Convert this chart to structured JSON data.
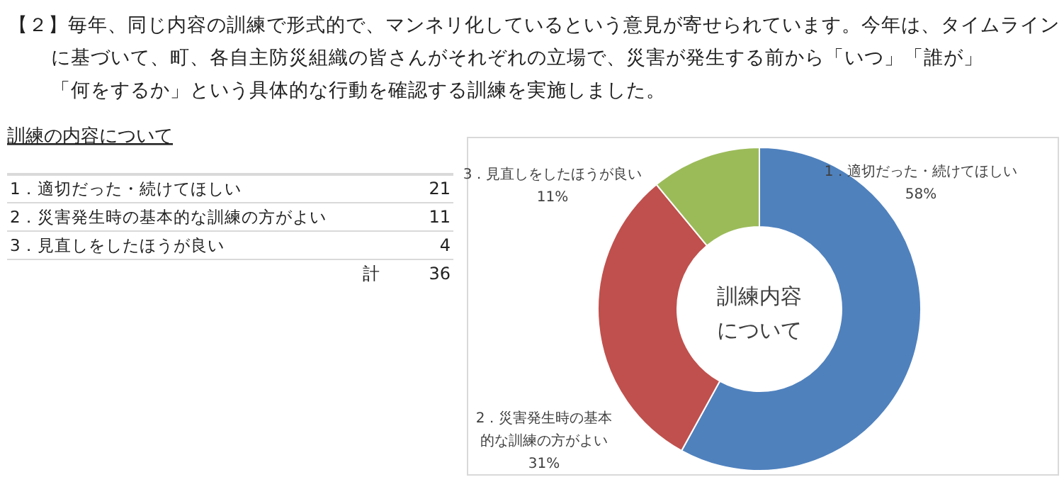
{
  "chart_data": {
    "type": "donut",
    "title": "【２】毎年、同じ内容の訓練で形式的で、マンネリ化しているという意見が寄せられています。今年は、タイムラインに基づいて、町、各自主防災組織の皆さんがそれぞれの立場で、災害が発生する前から「いつ」「誰が」「何をするか」という具体的な行動を確認する訓練を実施しました。",
    "subtitle": "訓練の内容について",
    "categories": [
      "1．適切だった・続けてほしい",
      "2．災害発生時の基本的な訓練の方がよい",
      "3．見直しをしたほうが良い"
    ],
    "values": [
      58,
      31,
      11
    ],
    "value_labels": [
      "58%",
      "31%",
      "11%"
    ],
    "colors": [
      "#4f81bd",
      "#c0504d",
      "#9bbb59"
    ],
    "annotations": [
      "21",
      "11",
      "4",
      "計",
      "36",
      "訓練内容",
      "について"
    ]
  }
}
